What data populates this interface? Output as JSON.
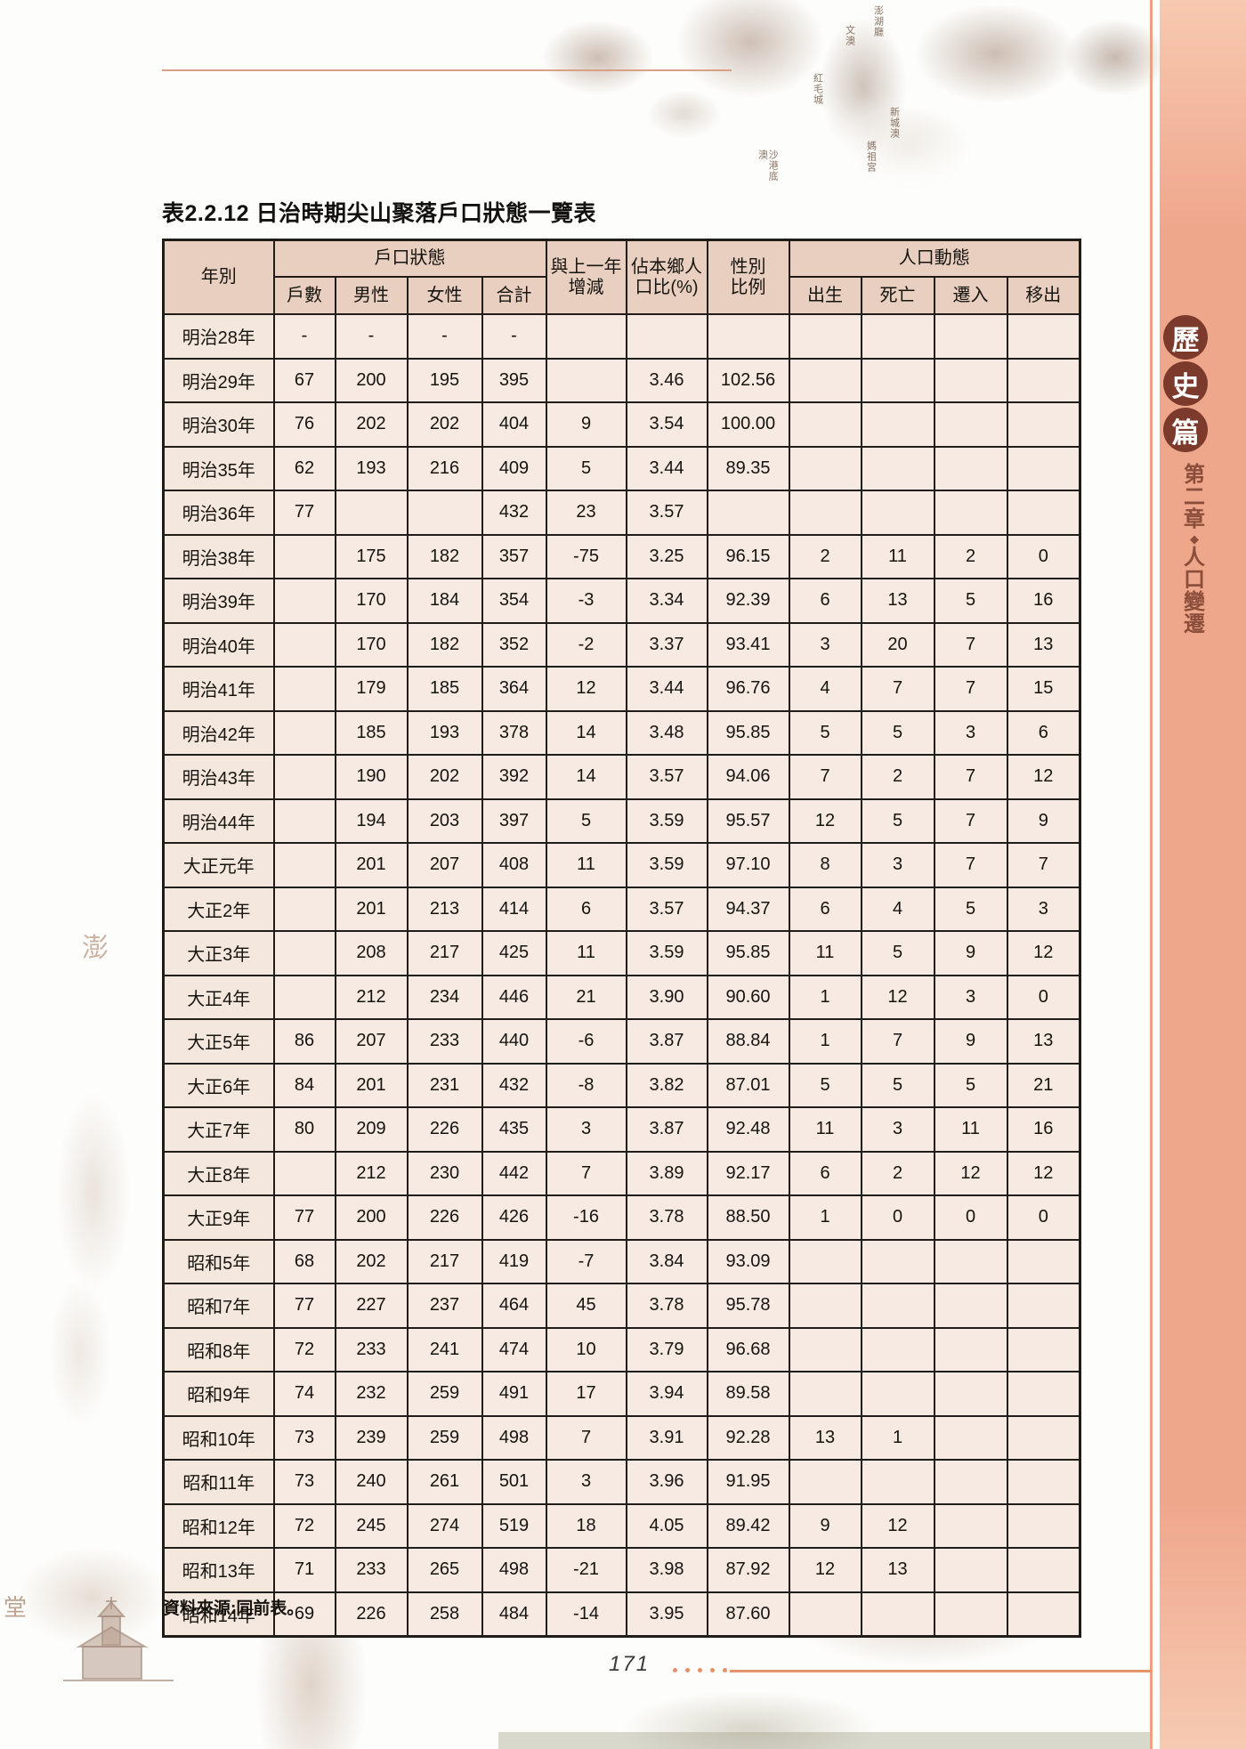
{
  "page": {
    "title": "表2.2.12 日治時期尖山聚落戶口狀態一覽表",
    "source_note": "資料來源:同前表。",
    "page_number": "171"
  },
  "sidebar": {
    "section_chars": [
      "歷",
      "史",
      "篇"
    ],
    "chapter_chars": [
      "第",
      "二",
      "章",
      "◆",
      "人",
      "口",
      "變",
      "遷"
    ],
    "band_color": "#efa78c",
    "circle_color": "#7b3a2b",
    "script_color": "#8b4e3a"
  },
  "decor": {
    "map_labels": [
      "澎湖廳",
      "文澳",
      "紅毛城",
      "新城澳",
      "媽祖宮",
      "沙港底澳"
    ],
    "faint_left_chars": [
      "澎",
      "堂"
    ]
  },
  "colors": {
    "accent_rule": "#d8a184",
    "footer_accent": "#e5936d",
    "header_cell_bg": "#e9cfc0",
    "data_cell_bg": "#f6eae2",
    "grid_border": "#201d19"
  },
  "table": {
    "header": {
      "year": "年別",
      "household_group": "戶口狀態",
      "households": "戶數",
      "male": "男性",
      "female": "女性",
      "total": "合計",
      "yoy_line1": "與上一年",
      "yoy_line2": "增減",
      "pct_line1": "佔本鄉人",
      "pct_line2": "口比(%)",
      "ratio_line1": "性別",
      "ratio_line2": "比例",
      "dynamics_group": "人口動態",
      "births": "出生",
      "deaths": "死亡",
      "move_in": "遷入",
      "move_out": "移出"
    },
    "rows": [
      [
        "明治28年",
        "-",
        "-",
        "-",
        "-",
        "",
        "",
        "",
        "",
        "",
        "",
        ""
      ],
      [
        "明治29年",
        "67",
        "200",
        "195",
        "395",
        "",
        "3.46",
        "102.56",
        "",
        "",
        "",
        ""
      ],
      [
        "明治30年",
        "76",
        "202",
        "202",
        "404",
        "9",
        "3.54",
        "100.00",
        "",
        "",
        "",
        ""
      ],
      [
        "明治35年",
        "62",
        "193",
        "216",
        "409",
        "5",
        "3.44",
        "89.35",
        "",
        "",
        "",
        ""
      ],
      [
        "明治36年",
        "77",
        "",
        "",
        "432",
        "23",
        "3.57",
        "",
        "",
        "",
        "",
        ""
      ],
      [
        "明治38年",
        "",
        "175",
        "182",
        "357",
        "-75",
        "3.25",
        "96.15",
        "2",
        "11",
        "2",
        "0"
      ],
      [
        "明治39年",
        "",
        "170",
        "184",
        "354",
        "-3",
        "3.34",
        "92.39",
        "6",
        "13",
        "5",
        "16"
      ],
      [
        "明治40年",
        "",
        "170",
        "182",
        "352",
        "-2",
        "3.37",
        "93.41",
        "3",
        "20",
        "7",
        "13"
      ],
      [
        "明治41年",
        "",
        "179",
        "185",
        "364",
        "12",
        "3.44",
        "96.76",
        "4",
        "7",
        "7",
        "15"
      ],
      [
        "明治42年",
        "",
        "185",
        "193",
        "378",
        "14",
        "3.48",
        "95.85",
        "5",
        "5",
        "3",
        "6"
      ],
      [
        "明治43年",
        "",
        "190",
        "202",
        "392",
        "14",
        "3.57",
        "94.06",
        "7",
        "2",
        "7",
        "12"
      ],
      [
        "明治44年",
        "",
        "194",
        "203",
        "397",
        "5",
        "3.59",
        "95.57",
        "12",
        "5",
        "7",
        "9"
      ],
      [
        "大正元年",
        "",
        "201",
        "207",
        "408",
        "11",
        "3.59",
        "97.10",
        "8",
        "3",
        "7",
        "7"
      ],
      [
        "大正2年",
        "",
        "201",
        "213",
        "414",
        "6",
        "3.57",
        "94.37",
        "6",
        "4",
        "5",
        "3"
      ],
      [
        "大正3年",
        "",
        "208",
        "217",
        "425",
        "11",
        "3.59",
        "95.85",
        "11",
        "5",
        "9",
        "12"
      ],
      [
        "大正4年",
        "",
        "212",
        "234",
        "446",
        "21",
        "3.90",
        "90.60",
        "1",
        "12",
        "3",
        "0"
      ],
      [
        "大正5年",
        "86",
        "207",
        "233",
        "440",
        "-6",
        "3.87",
        "88.84",
        "1",
        "7",
        "9",
        "13"
      ],
      [
        "大正6年",
        "84",
        "201",
        "231",
        "432",
        "-8",
        "3.82",
        "87.01",
        "5",
        "5",
        "5",
        "21"
      ],
      [
        "大正7年",
        "80",
        "209",
        "226",
        "435",
        "3",
        "3.87",
        "92.48",
        "11",
        "3",
        "11",
        "16"
      ],
      [
        "大正8年",
        "",
        "212",
        "230",
        "442",
        "7",
        "3.89",
        "92.17",
        "6",
        "2",
        "12",
        "12"
      ],
      [
        "大正9年",
        "77",
        "200",
        "226",
        "426",
        "-16",
        "3.78",
        "88.50",
        "1",
        "0",
        "0",
        "0"
      ],
      [
        "昭和5年",
        "68",
        "202",
        "217",
        "419",
        "-7",
        "3.84",
        "93.09",
        "",
        "",
        "",
        ""
      ],
      [
        "昭和7年",
        "77",
        "227",
        "237",
        "464",
        "45",
        "3.78",
        "95.78",
        "",
        "",
        "",
        ""
      ],
      [
        "昭和8年",
        "72",
        "233",
        "241",
        "474",
        "10",
        "3.79",
        "96.68",
        "",
        "",
        "",
        ""
      ],
      [
        "昭和9年",
        "74",
        "232",
        "259",
        "491",
        "17",
        "3.94",
        "89.58",
        "",
        "",
        "",
        ""
      ],
      [
        "昭和10年",
        "73",
        "239",
        "259",
        "498",
        "7",
        "3.91",
        "92.28",
        "13",
        "1",
        "",
        ""
      ],
      [
        "昭和11年",
        "73",
        "240",
        "261",
        "501",
        "3",
        "3.96",
        "91.95",
        "",
        "",
        "",
        ""
      ],
      [
        "昭和12年",
        "72",
        "245",
        "274",
        "519",
        "18",
        "4.05",
        "89.42",
        "9",
        "12",
        "",
        ""
      ],
      [
        "昭和13年",
        "71",
        "233",
        "265",
        "498",
        "-21",
        "3.98",
        "87.92",
        "12",
        "13",
        "",
        ""
      ],
      [
        "昭和14年",
        "69",
        "226",
        "258",
        "484",
        "-14",
        "3.95",
        "87.60",
        "",
        "",
        "",
        ""
      ]
    ]
  }
}
